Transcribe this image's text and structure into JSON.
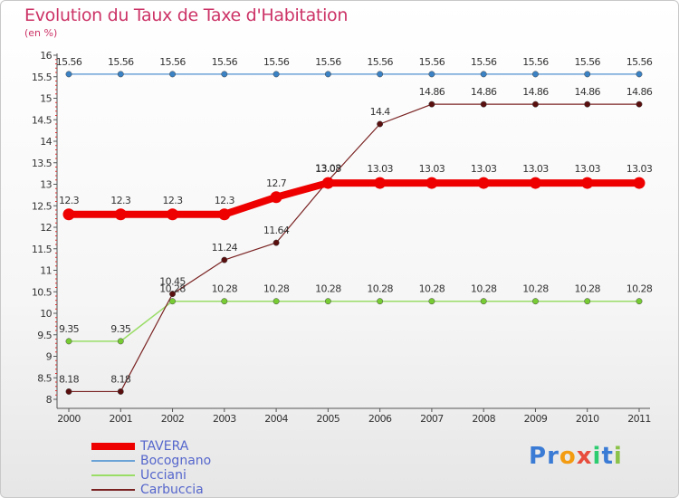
{
  "title": "Evolution du Taux de Taxe d'Habitation",
  "subtitle": "(en %)",
  "logo": {
    "text": "Proxiti",
    "letters": [
      "P",
      "r",
      "o",
      "x",
      "i",
      "t",
      "i"
    ],
    "letter_colors": [
      "#3a7bd5",
      "#3a7bd5",
      "#f39c12",
      "#e74c3c",
      "#2ecc71",
      "#3a7bd5",
      "#8bc34a"
    ]
  },
  "chart_data": {
    "type": "line",
    "title": "Evolution du Taux de Taxe d'Habitation",
    "ylabel": "(en %)",
    "xlabel": "",
    "x": [
      "2000",
      "2001",
      "2002",
      "2003",
      "2004",
      "2005",
      "2006",
      "2007",
      "2008",
      "2009",
      "2010",
      "2011"
    ],
    "ylim": [
      8,
      16
    ],
    "yticks": [
      "8",
      "8.5",
      "9",
      "9.5",
      "10",
      "10.5",
      "11",
      "11.5",
      "12",
      "12.5",
      "13",
      "13.5",
      "14",
      "14.5",
      "15",
      "15.5",
      "16"
    ],
    "grid": false,
    "legend_position": "bottom-left",
    "series": [
      {
        "name": "TAVERA",
        "color": "#ee0000",
        "marker": "#ee0000",
        "width": 8,
        "values": [
          12.3,
          12.3,
          12.3,
          12.3,
          12.7,
          13.03,
          13.03,
          13.03,
          13.03,
          13.03,
          13.03,
          13.03
        ],
        "labels": [
          "12.3",
          "12.3",
          "12.3",
          "12.3",
          "12.7",
          "13.03",
          "13.03",
          "13.03",
          "13.03",
          "13.03",
          "13.03",
          "13.03"
        ]
      },
      {
        "name": "Bocognano",
        "color": "#6ba3d6",
        "marker": "#3b82c4",
        "width": 1.5,
        "values": [
          15.56,
          15.56,
          15.56,
          15.56,
          15.56,
          15.56,
          15.56,
          15.56,
          15.56,
          15.56,
          15.56,
          15.56
        ],
        "labels": [
          "15.56",
          "15.56",
          "15.56",
          "15.56",
          "15.56",
          "15.56",
          "15.56",
          "15.56",
          "15.56",
          "15.56",
          "15.56",
          "15.56"
        ]
      },
      {
        "name": "Ucciani",
        "color": "#99dd66",
        "marker": "#77cc33",
        "width": 1.5,
        "values": [
          9.35,
          9.35,
          10.28,
          10.28,
          10.28,
          10.28,
          10.28,
          10.28,
          10.28,
          10.28,
          10.28,
          10.28
        ],
        "labels": [
          "9.35",
          "9.35",
          "10.28",
          "10.28",
          "10.28",
          "10.28",
          "10.28",
          "10.28",
          "10.28",
          "10.28",
          "10.28",
          "10.28"
        ]
      },
      {
        "name": "Carbuccia",
        "color": "#7a2222",
        "marker": "#5a0f0f",
        "width": 1.2,
        "values": [
          8.18,
          8.18,
          10.45,
          11.24,
          11.64,
          13.08,
          14.4,
          14.86,
          14.86,
          14.86,
          14.86,
          14.86
        ],
        "labels": [
          "8.18",
          "8.18",
          "10.45",
          "11.24",
          "11.64",
          "13.08",
          "14.4",
          "14.86",
          "14.86",
          "14.86",
          "14.86",
          "14.86"
        ]
      }
    ]
  }
}
